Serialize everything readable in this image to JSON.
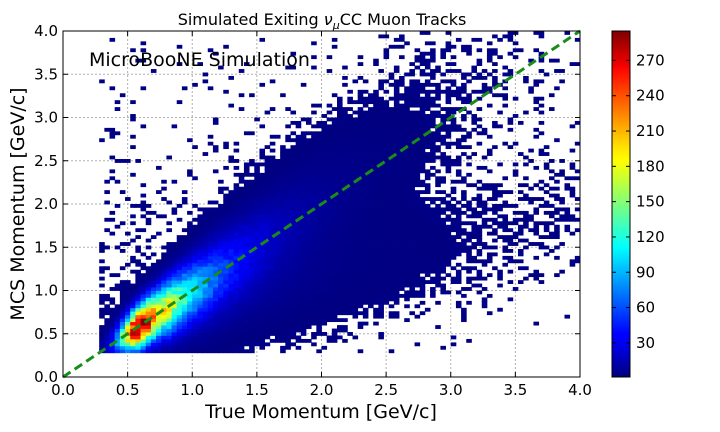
{
  "chart_data": {
    "type": "heatmap",
    "title": "Simulated Exiting νμCC Muon Tracks",
    "title_parts": {
      "pre": "Simulated Exiting ",
      "nu": "ν",
      "mu": "μ",
      "post": "CC Muon Tracks"
    },
    "xlabel": "True Momentum [GeV/c]",
    "ylabel": "MCS Momentum [GeV/c]",
    "annotation": "MicroBooNE Simulation",
    "xlim": [
      0.0,
      4.0
    ],
    "ylim": [
      0.0,
      4.0
    ],
    "xticks": [
      "0.0",
      "0.5",
      "1.0",
      "1.5",
      "2.0",
      "2.5",
      "3.0",
      "3.5",
      "4.0"
    ],
    "yticks": [
      "0.0",
      "0.5",
      "1.0",
      "1.5",
      "2.0",
      "2.5",
      "3.0",
      "3.5",
      "4.0"
    ],
    "grid": true,
    "bins": {
      "x": 100,
      "y": 100
    },
    "peak": {
      "x": 0.6,
      "y": 0.58,
      "count": 295
    },
    "reference_line": {
      "from": [
        0.0,
        0.0
      ],
      "to": [
        4.0,
        4.0
      ],
      "color": "#1a8c1a",
      "style": "dashed"
    },
    "colorbar": {
      "min": 1,
      "max": 295,
      "ticks": [
        "30",
        "60",
        "90",
        "120",
        "150",
        "180",
        "210",
        "240",
        "270"
      ],
      "tick_values": [
        30,
        60,
        90,
        120,
        150,
        180,
        210,
        240,
        270
      ],
      "colormap": "jet"
    }
  }
}
